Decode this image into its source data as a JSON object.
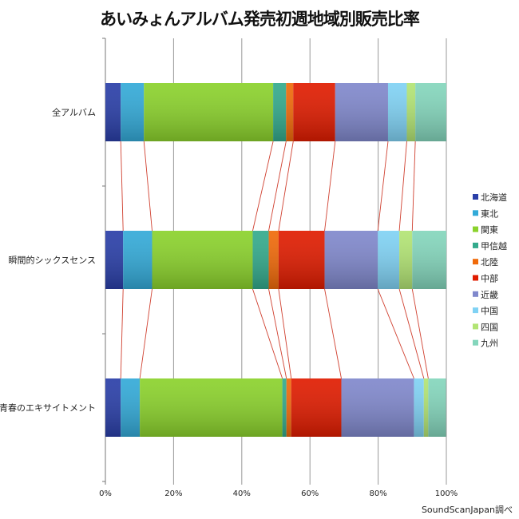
{
  "chart_data": {
    "type": "bar",
    "orientation": "horizontal",
    "stacked": "percent",
    "title": "あいみょんアルバム発売初週地域別販売比率",
    "source": "SoundScanJapan調べ",
    "categories": [
      "全アルバム",
      "瞬間的シックスセンス",
      "青春のエキサイトメント"
    ],
    "xlim": [
      0,
      100
    ],
    "x_ticks": [
      "0%",
      "20%",
      "40%",
      "60%",
      "80%",
      "100%"
    ],
    "grid": true,
    "legend_position": "right",
    "series_connector_lines": true,
    "connector_color": "#d04030",
    "series": [
      {
        "name": "北海道",
        "color": "#2a3fa8",
        "values": [
          4.5,
          5.2,
          4.5
        ]
      },
      {
        "name": "東北",
        "color": "#33aad8",
        "values": [
          6.8,
          8.5,
          5.6
        ]
      },
      {
        "name": "関東",
        "color": "#8bd22c",
        "values": [
          37.9,
          29.5,
          41.8
        ]
      },
      {
        "name": "甲信越",
        "color": "#33aa8c",
        "values": [
          3.8,
          4.7,
          1.2
        ]
      },
      {
        "name": "北陸",
        "color": "#f06a0a",
        "values": [
          2.1,
          2.9,
          1.4
        ]
      },
      {
        "name": "中部",
        "color": "#e01c00",
        "values": [
          12.3,
          13.5,
          14.7
        ]
      },
      {
        "name": "近畿",
        "color": "#8088cc",
        "values": [
          15.5,
          15.6,
          21.3
        ]
      },
      {
        "name": "中国",
        "color": "#80d2f4",
        "values": [
          5.5,
          6.3,
          2.9
        ]
      },
      {
        "name": "四国",
        "color": "#b2e474",
        "values": [
          2.5,
          3.8,
          1.3
        ]
      },
      {
        "name": "九州",
        "color": "#84d6bc",
        "values": [
          9.1,
          10.0,
          5.2
        ]
      }
    ]
  }
}
